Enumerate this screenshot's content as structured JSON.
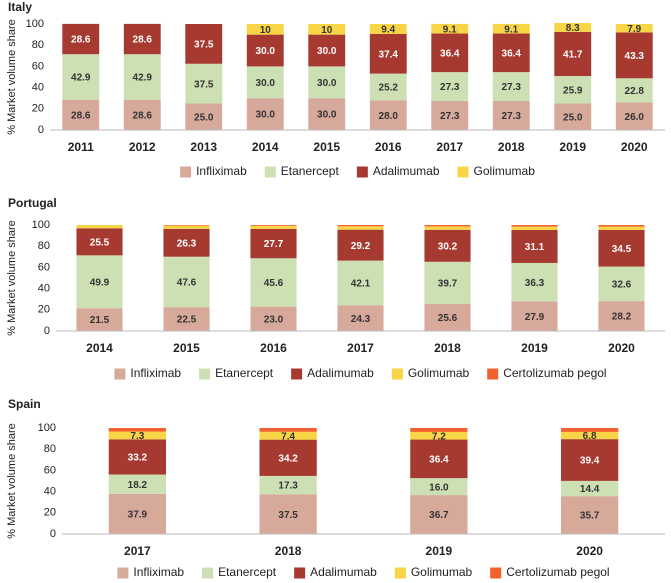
{
  "chart_data": [
    {
      "type": "bar",
      "stacked": true,
      "title": "Italy",
      "y_label": "% Market volume share",
      "categories": [
        "2011",
        "2012",
        "2013",
        "2014",
        "2015",
        "2016",
        "2017",
        "2018",
        "2019",
        "2020"
      ],
      "ylim": [
        0,
        100
      ],
      "yticks": [
        0,
        20,
        40,
        60,
        80,
        100
      ],
      "grid": false,
      "series": [
        {
          "name": "Infliximab",
          "color": "#d7a99b",
          "values": [
            28.6,
            28.6,
            25.0,
            30.0,
            30.0,
            28.0,
            27.3,
            27.3,
            25.0,
            26.0
          ],
          "value_labels": [
            "28.6",
            "28.6",
            "25.0",
            "30.0",
            "30.0",
            "28.0",
            "27.3",
            "27.3",
            "25.0",
            "26.0"
          ]
        },
        {
          "name": "Etanercept",
          "color": "#cde0b4",
          "values": [
            42.9,
            42.9,
            37.5,
            30.0,
            30.0,
            25.2,
            27.3,
            27.3,
            25.9,
            22.8
          ],
          "value_labels": [
            "42.9",
            "42.9",
            "37.5",
            "30.0",
            "30.0",
            "25.2",
            "27.3",
            "27.3",
            "25.9",
            "22.8"
          ]
        },
        {
          "name": "Adalimumab",
          "color": "#a63a30",
          "values": [
            28.6,
            28.6,
            37.5,
            30.0,
            30.0,
            37.4,
            36.4,
            36.4,
            41.7,
            43.3
          ],
          "value_labels": [
            "28.6",
            "28.6",
            "37.5",
            "30.0",
            "30.0",
            "37.4",
            "36.4",
            "36.4",
            "41.7",
            "43.3"
          ]
        },
        {
          "name": "Golimumab",
          "color": "#f8d447",
          "values": [
            null,
            null,
            null,
            10,
            10,
            9.4,
            9.1,
            9.1,
            8.3,
            7.9
          ],
          "value_labels": [
            null,
            null,
            null,
            "10",
            "10",
            "9.4",
            "9.1",
            "9.1",
            "8.3",
            "7.9"
          ]
        }
      ]
    },
    {
      "type": "bar",
      "stacked": true,
      "title": "Portugal",
      "y_label": "% Market volume share",
      "categories": [
        "2014",
        "2015",
        "2016",
        "2017",
        "2018",
        "2019",
        "2020"
      ],
      "ylim": [
        0,
        100
      ],
      "yticks": [
        0,
        20,
        40,
        60,
        80,
        100
      ],
      "grid": false,
      "series": [
        {
          "name": "Infliximab",
          "color": "#d7a99b",
          "values": [
            21.5,
            22.5,
            23.0,
            24.3,
            25.6,
            27.9,
            28.2
          ],
          "value_labels": [
            "21.5",
            "22.5",
            "23.0",
            "24.3",
            "25.6",
            "27.9",
            "28.2"
          ]
        },
        {
          "name": "Etanercept",
          "color": "#cde0b4",
          "values": [
            49.9,
            47.6,
            45.6,
            42.1,
            39.7,
            36.3,
            32.6
          ],
          "value_labels": [
            "49.9",
            "47.6",
            "45.6",
            "42.1",
            "39.7",
            "36.3",
            "32.6"
          ]
        },
        {
          "name": "Adalimumab",
          "color": "#a63a30",
          "values": [
            25.5,
            26.3,
            27.7,
            29.2,
            30.2,
            31.1,
            34.5
          ],
          "value_labels": [
            "25.5",
            "26.3",
            "27.7",
            "29.2",
            "30.2",
            "31.1",
            "34.5"
          ]
        },
        {
          "name": "Golimumab",
          "color": "#f8d447",
          "values": [
            3.1,
            3.0,
            2.9,
            3.2,
            3.2,
            3.2,
            3.2
          ]
        },
        {
          "name": "Certolizumab pegol",
          "color": "#f2622c",
          "values": [
            0,
            0.6,
            0.8,
            1.2,
            1.3,
            1.5,
            1.5
          ]
        }
      ]
    },
    {
      "type": "bar",
      "stacked": true,
      "title": "Spain",
      "y_label": "% Market volume share",
      "categories": [
        "2017",
        "2018",
        "2019",
        "2020"
      ],
      "ylim": [
        0,
        100
      ],
      "yticks": [
        0,
        20,
        40,
        60,
        80,
        100
      ],
      "grid": false,
      "series": [
        {
          "name": "Infliximab",
          "color": "#d7a99b",
          "values": [
            37.9,
            37.5,
            36.7,
            35.7
          ],
          "value_labels": [
            "37.9",
            "37.5",
            "36.7",
            "35.7"
          ]
        },
        {
          "name": "Etanercept",
          "color": "#cde0b4",
          "values": [
            18.2,
            17.3,
            16.0,
            14.4
          ],
          "value_labels": [
            "18.2",
            "17.3",
            "16.0",
            "14.4"
          ]
        },
        {
          "name": "Adalimumab",
          "color": "#a63a30",
          "values": [
            33.2,
            34.2,
            36.4,
            39.4
          ],
          "value_labels": [
            "33.2",
            "34.2",
            "36.4",
            "39.4"
          ]
        },
        {
          "name": "Golimumab",
          "color": "#f8d447",
          "values": [
            7.3,
            7.4,
            7.2,
            6.8
          ],
          "value_labels": [
            "7.3",
            "7.4",
            "7.2",
            "6.8"
          ]
        },
        {
          "name": "Certolizumab pegol",
          "color": "#f2622c",
          "values": [
            3.4,
            3.6,
            3.7,
            3.7
          ]
        }
      ]
    }
  ]
}
